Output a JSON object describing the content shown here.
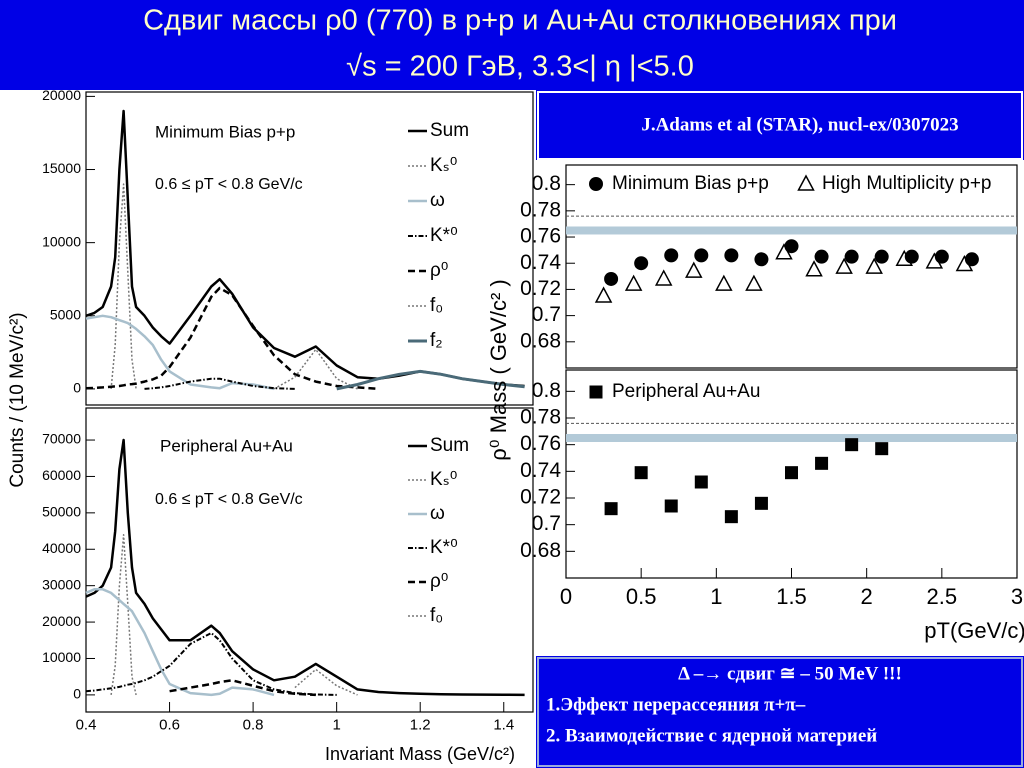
{
  "header": {
    "title_line1": "Сдвиг массы   ρ0 (770) в p+p и Au+Au столкновениях при",
    "title_line2": "√s = 200 ГэВ, 3.3<| η |<5.0"
  },
  "citation": "J.Adams et al (STAR), nucl-ex/0307023",
  "note": [
    "Δ –→ сдвиг  ≅ – 50 MeV  !!!",
    "1.Эффект перерассеяния  π+π–",
    "2. Взаимодействие с ядерной материей"
  ],
  "chart_data": [
    {
      "type": "line",
      "ylabel": "Counts / (10 MeV/c²)",
      "annotations": [
        "Minimum Bias p+p",
        "0.6 ≤ pT < 0.8 GeV/c"
      ],
      "xlim": [
        0.4,
        1.47
      ],
      "ylim": [
        -1100,
        20300
      ],
      "yticks": [
        0,
        5000,
        10000,
        15000,
        20000
      ],
      "x": [
        0.4,
        0.42,
        0.44,
        0.46,
        0.47,
        0.48,
        0.49,
        0.5,
        0.51,
        0.52,
        0.54,
        0.56,
        0.58,
        0.6,
        0.65,
        0.7,
        0.72,
        0.75,
        0.8,
        0.85,
        0.9,
        0.95,
        1,
        1.05,
        1.1,
        1.15,
        1.2,
        1.25,
        1.3,
        1.4,
        1.45
      ],
      "series": [
        {
          "name": "Sum",
          "color": "#000000",
          "dash": "solid",
          "width": 2.5,
          "values": [
            5000,
            5200,
            5600,
            7000,
            9000,
            15000,
            19000,
            13000,
            7000,
            5600,
            5000,
            4200,
            3600,
            3100,
            5000,
            7000,
            7500,
            6500,
            4200,
            2800,
            2200,
            2900,
            1600,
            800,
            700,
            900,
            1200,
            1000,
            700,
            300,
            200
          ]
        },
        {
          "name": "Kₛ⁰",
          "color": "#777777",
          "dash": "dotted",
          "width": 1.5,
          "values": [
            null,
            null,
            null,
            0,
            3000,
            10000,
            14000,
            8000,
            2000,
            0,
            null,
            null,
            null,
            null,
            null,
            null,
            null,
            null,
            null,
            null,
            null,
            null,
            null,
            null,
            null,
            null,
            null,
            null,
            null,
            null,
            null
          ]
        },
        {
          "name": "ω",
          "color": "#a8bfcc",
          "dash": "solid",
          "width": 2.5,
          "values": [
            4800,
            4900,
            5000,
            4900,
            4800,
            4700,
            4600,
            4500,
            4300,
            4100,
            3600,
            3000,
            2000,
            1200,
            300,
            100,
            50,
            400,
            300,
            0,
            null,
            null,
            null,
            null,
            null,
            null,
            null,
            null,
            null,
            null,
            null
          ]
        },
        {
          "name": "K*⁰",
          "color": "#000000",
          "dash": "dashdot",
          "width": 2,
          "values": [
            null,
            null,
            null,
            null,
            null,
            null,
            null,
            null,
            null,
            null,
            0,
            50,
            100,
            200,
            500,
            700,
            700,
            500,
            200,
            50,
            0,
            null,
            null,
            null,
            null,
            null,
            null,
            null,
            null,
            null,
            null
          ]
        },
        {
          "name": "ρ⁰",
          "color": "#000000",
          "dash": "dashed",
          "width": 2.5,
          "values": [
            50,
            70,
            100,
            150,
            180,
            200,
            250,
            300,
            330,
            360,
            500,
            650,
            900,
            1500,
            3500,
            6300,
            6900,
            6400,
            4300,
            2300,
            1000,
            500,
            200,
            100,
            0,
            null,
            null,
            null,
            null,
            null,
            null
          ]
        },
        {
          "name": "f₀",
          "color": "#777777",
          "dash": "dotted",
          "width": 1.5,
          "values": [
            null,
            null,
            null,
            null,
            null,
            null,
            null,
            null,
            null,
            null,
            null,
            null,
            null,
            null,
            null,
            null,
            null,
            null,
            null,
            0,
            800,
            2700,
            700,
            0,
            null,
            null,
            null,
            null,
            null,
            null,
            null
          ]
        },
        {
          "name": "f₂",
          "color": "#4a6a78",
          "dash": "solid",
          "width": 3,
          "values": [
            null,
            null,
            null,
            null,
            null,
            null,
            null,
            null,
            null,
            null,
            null,
            null,
            null,
            null,
            null,
            null,
            null,
            null,
            null,
            null,
            null,
            null,
            0,
            300,
            700,
            1000,
            1200,
            1000,
            700,
            300,
            150
          ]
        }
      ]
    },
    {
      "type": "line",
      "xlabel": "Invariant Mass (GeV/c²)",
      "annotations": [
        "Peripheral Au+Au",
        "0.6 ≤ pT < 0.8 GeV/c"
      ],
      "xlim": [
        0.4,
        1.47
      ],
      "ylim": [
        -4700,
        78800
      ],
      "xticks": [
        0.4,
        0.6,
        0.8,
        1,
        1.2,
        1.4
      ],
      "yticks": [
        0,
        10000,
        20000,
        30000,
        40000,
        50000,
        60000,
        70000
      ],
      "x": [
        0.4,
        0.42,
        0.44,
        0.46,
        0.47,
        0.48,
        0.49,
        0.5,
        0.51,
        0.52,
        0.54,
        0.56,
        0.58,
        0.6,
        0.65,
        0.7,
        0.72,
        0.75,
        0.8,
        0.85,
        0.9,
        0.95,
        1,
        1.05,
        1.1,
        1.15,
        1.2,
        1.25,
        1.3,
        1.4,
        1.45
      ],
      "series": [
        {
          "name": "Sum",
          "color": "#000000",
          "dash": "solid",
          "width": 2.5,
          "values": [
            27000,
            28000,
            30000,
            35000,
            45000,
            62000,
            70000,
            50000,
            35000,
            28000,
            25000,
            21000,
            18000,
            15000,
            15000,
            19000,
            17000,
            12000,
            7000,
            4000,
            5000,
            8500,
            5000,
            1500,
            800,
            500,
            300,
            200,
            100,
            50,
            0
          ]
        },
        {
          "name": "Kₛ⁰",
          "color": "#777777",
          "dash": "dotted",
          "width": 1.5,
          "values": [
            null,
            null,
            null,
            0,
            8000,
            30000,
            44000,
            25000,
            5000,
            0,
            null,
            null,
            null,
            null,
            null,
            null,
            null,
            null,
            null,
            null,
            null,
            null,
            null,
            null,
            null,
            null,
            null,
            null,
            null,
            null,
            null
          ]
        },
        {
          "name": "ω",
          "color": "#a8bfcc",
          "dash": "solid",
          "width": 2.5,
          "values": [
            28000,
            29000,
            29000,
            28000,
            27000,
            26000,
            25000,
            24000,
            23000,
            21000,
            17000,
            12000,
            7000,
            3000,
            500,
            0,
            300,
            2000,
            1500,
            0,
            null,
            null,
            null,
            null,
            null,
            null,
            null,
            null,
            null,
            null,
            null
          ]
        },
        {
          "name": "K*⁰",
          "color": "#000000",
          "dash": "dashdot",
          "width": 2,
          "values": [
            1000,
            1200,
            1500,
            1800,
            2000,
            2200,
            2500,
            2800,
            3000,
            3300,
            4000,
            5000,
            6500,
            8000,
            14000,
            17000,
            15000,
            10000,
            4000,
            1500,
            500,
            100,
            0,
            null,
            null,
            null,
            null,
            null,
            null,
            null,
            null
          ]
        },
        {
          "name": "ρ⁰",
          "color": "#000000",
          "dash": "dashed",
          "width": 2.5,
          "values": [
            null,
            null,
            null,
            null,
            null,
            null,
            null,
            null,
            null,
            null,
            null,
            null,
            null,
            1000,
            2000,
            3000,
            3500,
            4000,
            2500,
            1000,
            300,
            0,
            null,
            null,
            null,
            null,
            null,
            null,
            null,
            null,
            null
          ]
        },
        {
          "name": "f₀",
          "color": "#777777",
          "dash": "dotted",
          "width": 1.5,
          "values": [
            null,
            null,
            null,
            null,
            null,
            null,
            null,
            null,
            null,
            null,
            null,
            null,
            null,
            null,
            null,
            null,
            null,
            null,
            null,
            null,
            2000,
            7000,
            2500,
            0,
            null,
            null,
            null,
            null,
            null,
            null,
            null
          ]
        }
      ]
    },
    {
      "type": "scatter",
      "ylabel": "ρ⁰ Mass ( GeV/c² )",
      "xlim": [
        0,
        3
      ],
      "ylim": [
        0.66,
        0.815
      ],
      "yticks": [
        0.68,
        0.7,
        0.72,
        0.74,
        0.76,
        0.78,
        0.8
      ],
      "reference_lines": [
        {
          "value": 0.776,
          "style": "dashed"
        },
        {
          "value": 0.765,
          "style": "band"
        }
      ],
      "series": [
        {
          "name": "Minimum Bias p+p",
          "marker": "circle",
          "color": "#000000",
          "x": [
            0.3,
            0.5,
            0.7,
            0.9,
            1.1,
            1.3,
            1.5,
            1.7,
            1.9,
            2.1,
            2.3,
            2.5,
            2.7
          ],
          "values": [
            0.728,
            0.74,
            0.746,
            0.746,
            0.746,
            0.743,
            0.753,
            0.745,
            0.745,
            0.745,
            0.745,
            0.745,
            0.743
          ]
        },
        {
          "name": "High Multiplicity p+p",
          "marker": "triangle",
          "color": "#000000",
          "x": [
            0.25,
            0.45,
            0.65,
            0.85,
            1.05,
            1.25,
            1.45,
            1.65,
            1.85,
            2.05,
            2.25,
            2.45,
            2.65
          ],
          "values": [
            0.715,
            0.724,
            0.728,
            0.734,
            0.724,
            0.724,
            0.748,
            0.735,
            0.737,
            0.737,
            0.743,
            0.741,
            0.739
          ]
        }
      ]
    },
    {
      "type": "scatter",
      "xlabel": "pT(GeV/c)",
      "xlim": [
        0,
        3
      ],
      "ylim": [
        0.66,
        0.816
      ],
      "xticks": [
        0,
        0.5,
        1,
        1.5,
        2,
        2.5,
        3
      ],
      "yticks": [
        0.68,
        0.7,
        0.72,
        0.74,
        0.76,
        0.78,
        0.8
      ],
      "reference_lines": [
        {
          "value": 0.776,
          "style": "dashed"
        },
        {
          "value": 0.765,
          "style": "band"
        }
      ],
      "series": [
        {
          "name": "Peripheral Au+Au",
          "marker": "square",
          "color": "#000000",
          "x": [
            0.3,
            0.5,
            0.7,
            0.9,
            1.1,
            1.3,
            1.5,
            1.7,
            1.9,
            2.1
          ],
          "values": [
            0.712,
            0.739,
            0.714,
            0.732,
            0.706,
            0.716,
            0.739,
            0.746,
            0.76,
            0.757
          ]
        }
      ]
    }
  ]
}
